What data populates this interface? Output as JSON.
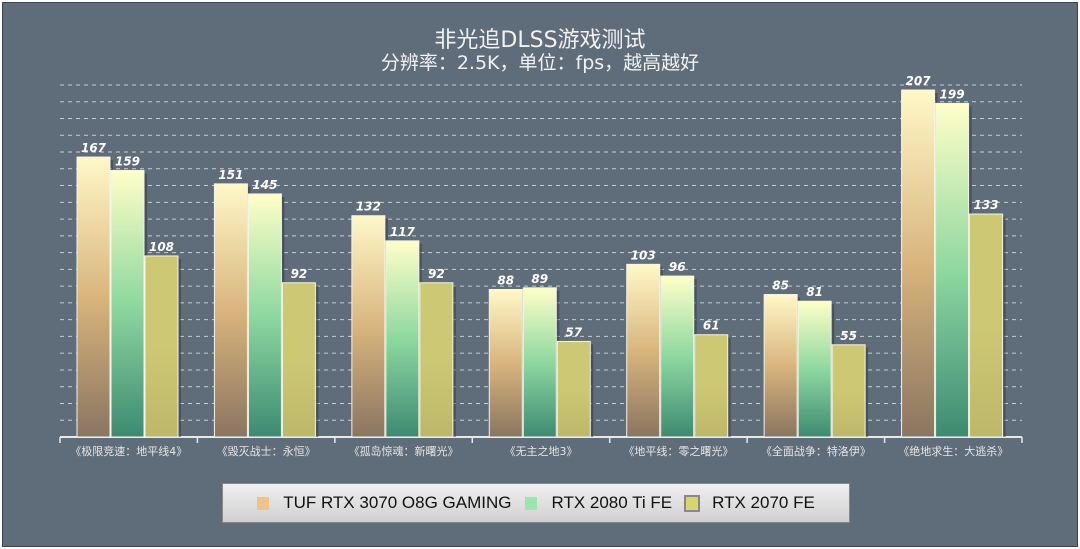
{
  "chart_data": {
    "type": "bar",
    "title": "非光追DLSS游戏测试",
    "subtitle": "分辨率：2.5K，单位：fps，越高越好",
    "categories": [
      "《极限竞速：地平线4》",
      "《毁灭战士：永恒》",
      "《孤岛惊魂：新曙光》",
      "《无主之地3》",
      "《地平线：零之曙光》",
      "《全面战争：特洛伊》",
      "《绝地求生：大逃杀》"
    ],
    "series": [
      {
        "name": "TUF RTX 3070 O8G GAMING",
        "values": [
          167,
          151,
          132,
          88,
          103,
          85,
          207
        ],
        "colors": [
          "#fff8c8",
          "#d9b57d",
          "#8a7560"
        ]
      },
      {
        "name": "RTX 2080 Ti FE",
        "values": [
          159,
          145,
          117,
          89,
          96,
          81,
          199
        ],
        "colors": [
          "#ffffc8",
          "#8ed8a0",
          "#3d8a72"
        ]
      },
      {
        "name": "RTX 2070 FE",
        "values": [
          108,
          92,
          92,
          57,
          61,
          55,
          133
        ],
        "colors": [
          "#cdc874",
          "#cdc874",
          "#bdb868"
        ]
      }
    ],
    "ylim": [
      0,
      210
    ],
    "grid": true,
    "legend": "bottom"
  }
}
